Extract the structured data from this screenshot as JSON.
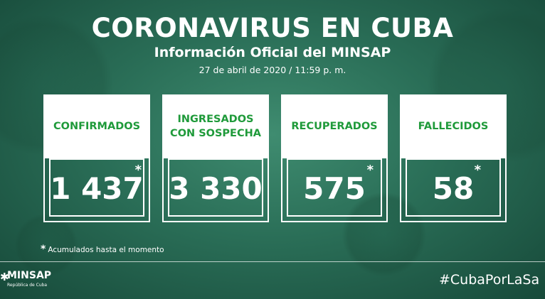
{
  "header": {
    "title": "CORONAVIRUS EN CUBA",
    "subtitle": "Información Oficial del MINSAP",
    "date": "27 de abril de 2020 / 11:59 p. m."
  },
  "cards": [
    {
      "label": "CONFIRMADOS",
      "value": "1 437",
      "asterisk": "*"
    },
    {
      "label": "INGRESADOS\nCON SOSPECHA",
      "value": "3 330",
      "asterisk": ""
    },
    {
      "label": "RECUPERADOS",
      "value": "575",
      "asterisk": "*"
    },
    {
      "label": "FALLECIDOS",
      "value": "58",
      "asterisk": "*"
    }
  ],
  "note": {
    "star": "*",
    "text": "Acumulados hasta el momento"
  },
  "footer": {
    "logo_mark": "✱",
    "logo_text": "MINSAP",
    "logo_sub": "República de Cuba",
    "hashtag": "#CubaPorLaSa"
  },
  "colors": {
    "label_green": "#1f9a3a",
    "background": "#2a6e57"
  }
}
